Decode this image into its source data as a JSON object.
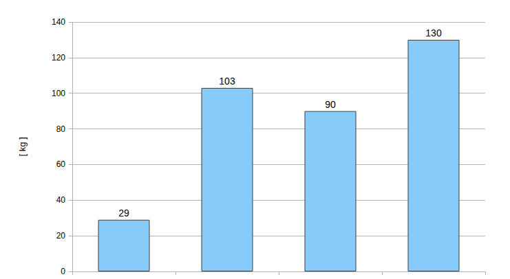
{
  "chart_data": {
    "type": "bar",
    "y_label": "[ kg ]",
    "categories": [
      null,
      null,
      null,
      null
    ],
    "values": [
      29,
      103,
      90,
      130
    ],
    "color": "#87cbfb",
    "ylim": [
      0,
      140
    ],
    "yticks": [
      0,
      20,
      40,
      60,
      80,
      100,
      120,
      140
    ],
    "grid": true,
    "data_labels": true,
    "tick_labels": "y"
  }
}
